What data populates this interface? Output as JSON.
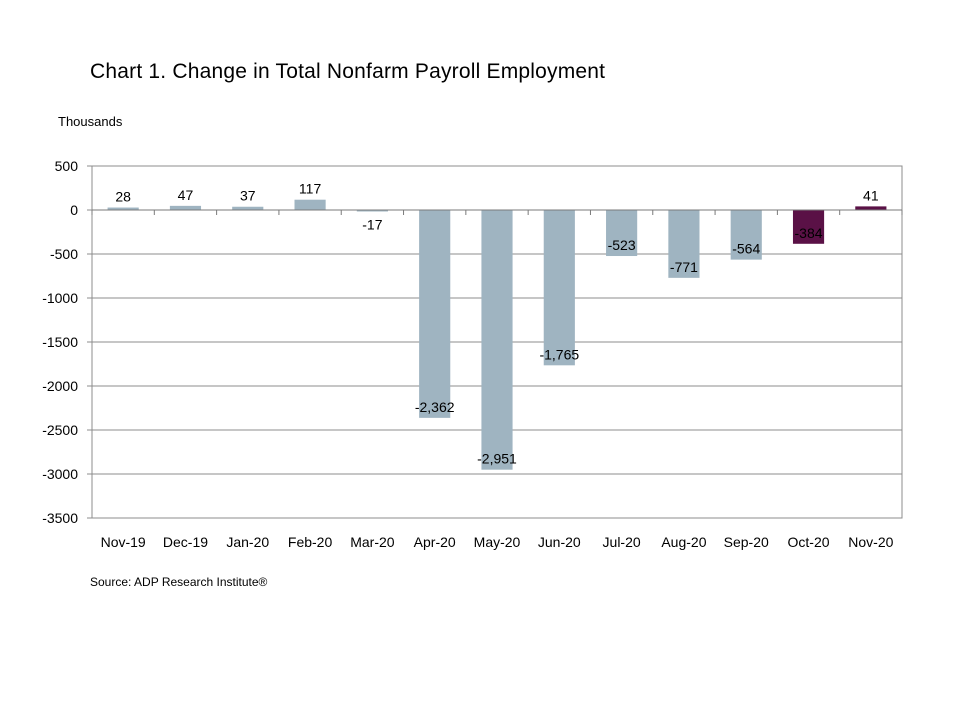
{
  "title": "Chart 1. Change in Total Nonfarm Payroll Employment",
  "units": "Thousands",
  "source": "Source: ADP Research Institute®",
  "colors": {
    "bar_default": "#9fb4c1",
    "bar_highlight": "#5a1146",
    "gridline": "#8c8c8c"
  },
  "chart_data": {
    "type": "bar",
    "title": "Chart 1. Change in Total Nonfarm Payroll Employment",
    "ylabel": "Thousands",
    "xlabel": "",
    "categories": [
      "Nov-19",
      "Dec-19",
      "Jan-20",
      "Feb-20",
      "Mar-20",
      "Apr-20",
      "May-20",
      "Jun-20",
      "Jul-20",
      "Aug-20",
      "Sep-20",
      "Oct-20",
      "Nov-20"
    ],
    "values": [
      28,
      47,
      37,
      117,
      -17,
      -2362,
      -2951,
      -1765,
      -523,
      -771,
      -564,
      -384,
      41
    ],
    "data_labels": [
      "28",
      "47",
      "37",
      "117",
      "-17",
      "-2,362",
      "-2,951",
      "-1,765",
      "-523",
      "-771",
      "-564",
      "-384",
      "41"
    ],
    "highlighted": [
      "Oct-20",
      "Nov-20"
    ],
    "ylim": [
      -3500,
      500
    ],
    "yticks": [
      "500",
      "0",
      "-500",
      "-1000",
      "-1500",
      "-2000",
      "-2500",
      "-3000",
      "-3500"
    ],
    "grid": true,
    "legend": "none"
  }
}
